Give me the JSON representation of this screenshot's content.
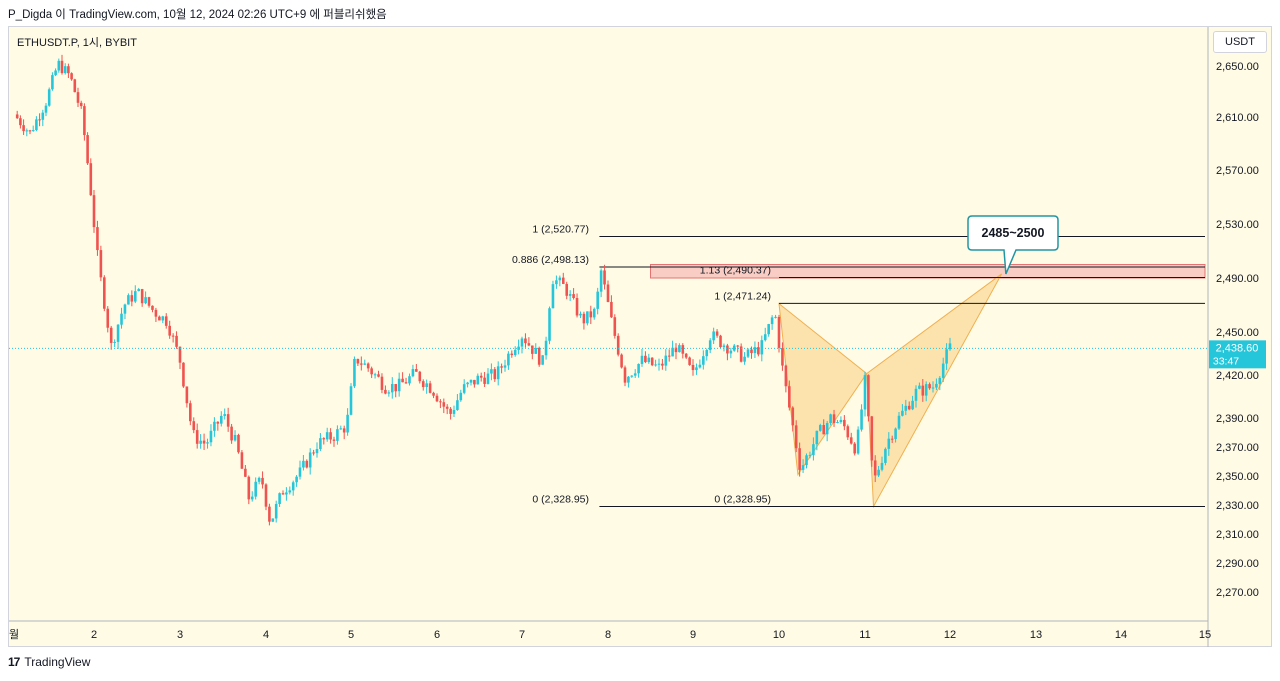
{
  "header": {
    "attribution": "P_Digda 이 TradingView.com, 10월 12, 2024 02:26 UTC+9 에 퍼블리쉬했음"
  },
  "symbol": {
    "label": "ETHUSDT.P, 1시, BYBIT"
  },
  "currency": {
    "label": "USDT"
  },
  "footer": {
    "brand": "TradingView"
  },
  "colors": {
    "up": "#26c6da",
    "down": "#ef5350",
    "pattern": "#f9c56a",
    "zone": "#f4a7a7",
    "price_tag": "#26c6da",
    "callout": "#2196a3"
  },
  "chart_data": {
    "type": "candlestick",
    "ylim": [
      2255,
      2668
    ],
    "y_ticks": [
      "2,650.00",
      "2,610.00",
      "2,570.00",
      "2,530.00",
      "2,490.00",
      "2,450.00",
      "2,420.00",
      "2,390.00",
      "2,370.00",
      "2,350.00",
      "2,330.00",
      "2,310.00",
      "2,290.00",
      "2,270.00"
    ],
    "y_tick_values": [
      2650,
      2610,
      2570,
      2530,
      2490,
      2450,
      2420,
      2390,
      2370,
      2350,
      2330,
      2310,
      2290,
      2270
    ],
    "x_ticks": [
      "월",
      "2",
      "3",
      "4",
      "5",
      "6",
      "7",
      "8",
      "9",
      "10",
      "11",
      "12",
      "13",
      "14",
      "15"
    ],
    "x_tick_days": [
      1,
      2,
      3,
      4,
      5,
      6,
      7,
      8,
      9,
      10,
      11,
      12,
      13,
      14,
      15
    ],
    "xlim_days": [
      1,
      15
    ],
    "current_price": {
      "value": 2438.6,
      "label": "2,438.60",
      "countdown": "33:47"
    },
    "price_path": [
      [
        1.0,
        2612
      ],
      [
        1.2,
        2598
      ],
      [
        1.4,
        2622
      ],
      [
        1.55,
        2652
      ],
      [
        1.7,
        2642
      ],
      [
        1.85,
        2612
      ],
      [
        1.95,
        2560
      ],
      [
        2.05,
        2500
      ],
      [
        2.2,
        2440
      ],
      [
        2.35,
        2470
      ],
      [
        2.5,
        2480
      ],
      [
        2.7,
        2465
      ],
      [
        2.85,
        2458
      ],
      [
        3.0,
        2430
      ],
      [
        3.15,
        2378
      ],
      [
        3.3,
        2372
      ],
      [
        3.5,
        2393
      ],
      [
        3.65,
        2372
      ],
      [
        3.8,
        2335
      ],
      [
        3.95,
        2348
      ],
      [
        4.05,
        2318
      ],
      [
        4.2,
        2340
      ],
      [
        4.4,
        2352
      ],
      [
        4.6,
        2372
      ],
      [
        4.8,
        2378
      ],
      [
        4.95,
        2385
      ],
      [
        5.05,
        2432
      ],
      [
        5.2,
        2425
      ],
      [
        5.4,
        2412
      ],
      [
        5.55,
        2412
      ],
      [
        5.75,
        2421
      ],
      [
        5.95,
        2410
      ],
      [
        6.15,
        2392
      ],
      [
        6.3,
        2410
      ],
      [
        6.5,
        2418
      ],
      [
        6.7,
        2420
      ],
      [
        6.9,
        2440
      ],
      [
        7.0,
        2448
      ],
      [
        7.15,
        2436
      ],
      [
        7.25,
        2428
      ],
      [
        7.35,
        2490
      ],
      [
        7.5,
        2483
      ],
      [
        7.7,
        2458
      ],
      [
        7.85,
        2465
      ],
      [
        7.92,
        2495
      ],
      [
        8.05,
        2455
      ],
      [
        8.2,
        2418
      ],
      [
        8.4,
        2430
      ],
      [
        8.6,
        2425
      ],
      [
        8.8,
        2440
      ],
      [
        9.0,
        2420
      ],
      [
        9.2,
        2448
      ],
      [
        9.4,
        2440
      ],
      [
        9.6,
        2432
      ],
      [
        9.8,
        2440
      ],
      [
        9.95,
        2465
      ],
      [
        10.05,
        2420
      ],
      [
        10.25,
        2355
      ],
      [
        10.45,
        2378
      ],
      [
        10.6,
        2390
      ],
      [
        10.75,
        2385
      ],
      [
        10.9,
        2368
      ],
      [
        11.0,
        2415
      ],
      [
        11.1,
        2345
      ],
      [
        11.25,
        2372
      ],
      [
        11.4,
        2390
      ],
      [
        11.6,
        2408
      ],
      [
        11.8,
        2412
      ],
      [
        12.0,
        2439
      ]
    ],
    "candle_step_days": 0.04,
    "fib_left": {
      "levels": [
        {
          "label": "1 (2,520.77)",
          "value": 2520.77
        },
        {
          "label": "0.886 (2,498.13)",
          "value": 2498.13
        },
        {
          "label": "0 (2,328.95)",
          "value": 2328.95
        }
      ],
      "x_days": [
        7.9,
        15
      ]
    },
    "fib_right": {
      "levels": [
        {
          "label": "1.13 (2,490.37)",
          "value": 2490.37
        },
        {
          "label": "1 (2,471.24)",
          "value": 2471.24
        },
        {
          "label": "0 (2,328.95)",
          "value": 2328.95
        }
      ],
      "x_days": [
        10,
        15
      ]
    },
    "zone": {
      "top": 2500,
      "bottom": 2490,
      "x_days": [
        8.5,
        15
      ]
    },
    "pattern": {
      "X": [
        10.0,
        2471
      ],
      "A": [
        10.22,
        2351
      ],
      "B": [
        11.02,
        2421
      ],
      "C": [
        11.1,
        2329
      ],
      "D": [
        12.6,
        2493
      ]
    },
    "callout": {
      "label": "2485~2500",
      "anchor": [
        12.65,
        2493
      ]
    }
  }
}
